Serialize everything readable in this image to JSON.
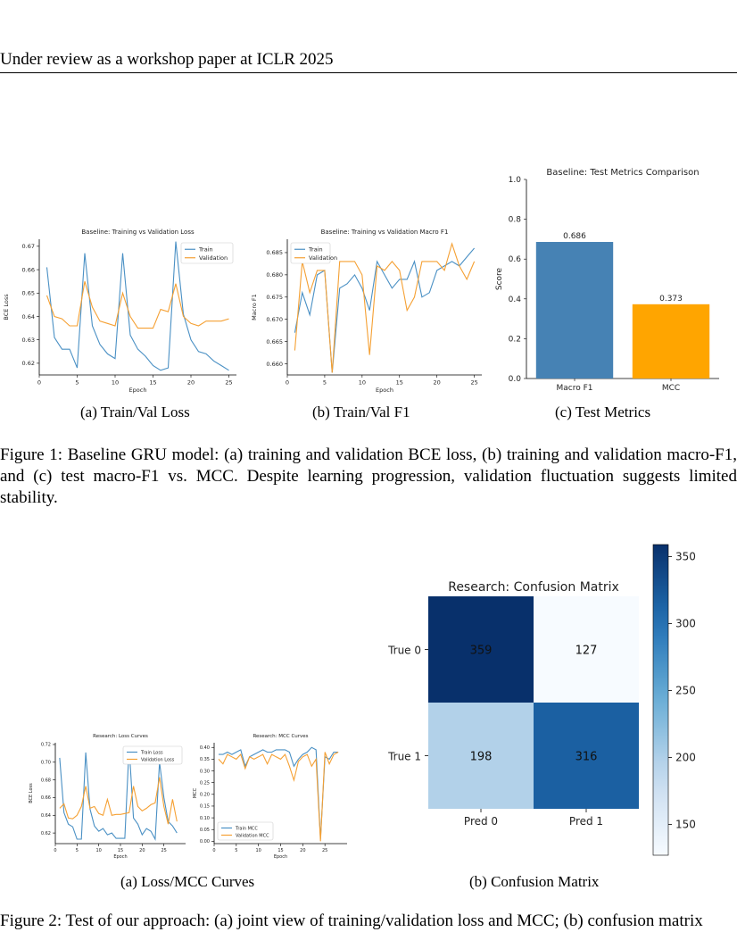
{
  "header": {
    "text": "Under review as a workshop paper at ICLR 2025"
  },
  "figure1": {
    "caption": "Figure 1: Baseline GRU model: (a) training and validation BCE loss, (b) training and validation macro-F1, and (c) test macro-F1 vs. MCC. Despite learning progression, validation fluctuation suggests limited stability.",
    "subcaptions": [
      "(a) Train/Val Loss",
      "(b) Train/Val F1",
      "(c) Test Metrics"
    ]
  },
  "figure2": {
    "subcaptions": [
      "(a) Loss/MCC Curves",
      "(b) Confusion Matrix"
    ],
    "caption_partial": "Figure 2: Test of our approach: (a) joint view of training/validation loss and MCC; (b) confusion matrix"
  },
  "colors": {
    "train": "#4a90c4",
    "validation": "#f5a033",
    "bar1": "#4682b4",
    "bar2": "#ffa500"
  },
  "chart_data": [
    {
      "id": "loss",
      "type": "line",
      "title": "Baseline: Training vs Validation Loss",
      "xlabel": "Epoch",
      "ylabel": "BCE Loss",
      "xlim": [
        0,
        26
      ],
      "ylim": [
        0.615,
        0.673
      ],
      "xticks": [
        0,
        5,
        10,
        15,
        20,
        25
      ],
      "yticks": [
        0.62,
        0.63,
        0.64,
        0.65,
        0.66,
        0.67
      ],
      "ytick_labels": [
        "0.62",
        "0.63",
        "0.64",
        "0.65",
        "0.66",
        "0.67"
      ],
      "legend": "top-right",
      "x": [
        1,
        2,
        3,
        4,
        5,
        6,
        7,
        8,
        9,
        10,
        11,
        12,
        13,
        14,
        15,
        16,
        17,
        18,
        19,
        20,
        21,
        22,
        23,
        24,
        25
      ],
      "series": [
        {
          "name": "Train",
          "color": "#4a90c4",
          "values": [
            0.661,
            0.631,
            0.626,
            0.626,
            0.618,
            0.667,
            0.636,
            0.628,
            0.624,
            0.622,
            0.667,
            0.632,
            0.626,
            0.623,
            0.619,
            0.617,
            0.618,
            0.672,
            0.641,
            0.63,
            0.625,
            0.624,
            0.621,
            0.619,
            0.617
          ]
        },
        {
          "name": "Validation",
          "color": "#f5a033",
          "values": [
            0.649,
            0.64,
            0.639,
            0.636,
            0.636,
            0.655,
            0.644,
            0.638,
            0.637,
            0.636,
            0.65,
            0.64,
            0.635,
            0.635,
            0.635,
            0.643,
            0.642,
            0.654,
            0.64,
            0.637,
            0.636,
            0.638,
            0.638,
            0.638,
            0.639
          ]
        }
      ]
    },
    {
      "id": "f1",
      "type": "line",
      "title": "Baseline: Training vs Validation Macro F1",
      "xlabel": "Epoch",
      "ylabel": "Macro F1",
      "xlim": [
        0,
        26
      ],
      "ylim": [
        0.6575,
        0.688
      ],
      "xticks": [
        0,
        5,
        10,
        15,
        20,
        25
      ],
      "yticks": [
        0.66,
        0.665,
        0.67,
        0.675,
        0.68,
        0.685
      ],
      "ytick_labels": [
        "0.660",
        "0.665",
        "0.670",
        "0.675",
        "0.680",
        "0.685"
      ],
      "legend": "top-left",
      "x": [
        1,
        2,
        3,
        4,
        5,
        6,
        7,
        8,
        9,
        10,
        11,
        12,
        13,
        14,
        15,
        16,
        17,
        18,
        19,
        20,
        21,
        22,
        23,
        24,
        25
      ],
      "series": [
        {
          "name": "Train",
          "color": "#4a90c4",
          "values": [
            0.667,
            0.676,
            0.671,
            0.68,
            0.681,
            0.658,
            0.677,
            0.678,
            0.68,
            0.677,
            0.672,
            0.683,
            0.68,
            0.677,
            0.679,
            0.679,
            0.683,
            0.675,
            0.676,
            0.681,
            0.682,
            0.683,
            0.682,
            0.684,
            0.686
          ]
        },
        {
          "name": "Validation",
          "color": "#f5a033",
          "values": [
            0.663,
            0.683,
            0.676,
            0.681,
            0.681,
            0.658,
            0.683,
            0.683,
            0.683,
            0.68,
            0.662,
            0.682,
            0.681,
            0.683,
            0.681,
            0.672,
            0.675,
            0.683,
            0.683,
            0.683,
            0.681,
            0.687,
            0.682,
            0.679,
            0.683
          ]
        }
      ]
    },
    {
      "id": "bars",
      "type": "bar",
      "title": "Baseline: Test Metrics Comparison",
      "xlabel": "",
      "ylabel": "Score",
      "ylim": [
        0,
        1.0
      ],
      "yticks": [
        0.0,
        0.2,
        0.4,
        0.6,
        0.8,
        1.0
      ],
      "ytick_labels": [
        "0.0",
        "0.2",
        "0.4",
        "0.6",
        "0.8",
        "1.0"
      ],
      "categories": [
        "Macro F1",
        "MCC"
      ],
      "values": [
        0.686,
        0.373
      ],
      "value_labels": [
        "0.686",
        "0.373"
      ],
      "colors": [
        "#4682b4",
        "#ffa500"
      ]
    },
    {
      "id": "rloss",
      "type": "line",
      "title": "Research: Loss Curves",
      "xlabel": "Epoch",
      "ylabel": "BCE Loss",
      "xlim": [
        0,
        30
      ],
      "ylim": [
        0.608,
        0.722
      ],
      "xticks": [
        0,
        5,
        10,
        15,
        20,
        25
      ],
      "yticks": [
        0.62,
        0.64,
        0.66,
        0.68,
        0.7,
        0.72
      ],
      "ytick_labels": [
        "0.62",
        "0.64",
        "0.66",
        "0.68",
        "0.70",
        "0.72"
      ],
      "legend": "top-right",
      "x": [
        1,
        2,
        3,
        4,
        5,
        6,
        7,
        8,
        9,
        10,
        11,
        12,
        13,
        14,
        15,
        16,
        17,
        18,
        19,
        20,
        21,
        22,
        23,
        24,
        25,
        26,
        27,
        28
      ],
      "series": [
        {
          "name": "Train Loss",
          "color": "#4a90c4",
          "values": [
            0.705,
            0.643,
            0.63,
            0.627,
            0.613,
            0.613,
            0.711,
            0.647,
            0.628,
            0.622,
            0.625,
            0.618,
            0.62,
            0.614,
            0.614,
            0.614,
            0.718,
            0.637,
            0.63,
            0.618,
            0.625,
            0.622,
            0.613,
            0.7,
            0.66,
            0.633,
            0.628,
            0.62
          ]
        },
        {
          "name": "Validation Loss",
          "color": "#f5a033",
          "values": [
            0.648,
            0.653,
            0.637,
            0.636,
            0.64,
            0.65,
            0.673,
            0.648,
            0.65,
            0.642,
            0.64,
            0.658,
            0.64,
            0.641,
            0.641,
            0.642,
            0.643,
            0.673,
            0.65,
            0.645,
            0.648,
            0.652,
            0.654,
            0.683,
            0.65,
            0.63,
            0.658,
            0.633
          ]
        }
      ]
    },
    {
      "id": "rmcc",
      "type": "line",
      "title": "Research: MCC Curves",
      "xlabel": "Epoch",
      "ylabel": "MCC",
      "xlim": [
        0,
        30
      ],
      "ylim": [
        -0.01,
        0.42
      ],
      "xticks": [
        0,
        5,
        10,
        15,
        20,
        25
      ],
      "yticks": [
        0.0,
        0.05,
        0.1,
        0.15,
        0.2,
        0.25,
        0.3,
        0.35,
        0.4
      ],
      "ytick_labels": [
        "0.00",
        "0.05",
        "0.10",
        "0.15",
        "0.20",
        "0.25",
        "0.30",
        "0.35",
        "0.40"
      ],
      "legend": "bottom-left",
      "x": [
        1,
        2,
        3,
        4,
        5,
        6,
        7,
        8,
        9,
        10,
        11,
        12,
        13,
        14,
        15,
        16,
        17,
        18,
        19,
        20,
        21,
        22,
        23,
        24,
        25,
        26,
        27,
        28
      ],
      "series": [
        {
          "name": "Train MCC",
          "color": "#4a90c4",
          "values": [
            0.37,
            0.37,
            0.38,
            0.37,
            0.38,
            0.39,
            0.32,
            0.36,
            0.37,
            0.38,
            0.39,
            0.38,
            0.38,
            0.39,
            0.39,
            0.39,
            0.38,
            0.32,
            0.35,
            0.37,
            0.38,
            0.4,
            0.39,
            0.01,
            0.36,
            0.35,
            0.38,
            0.38
          ]
        },
        {
          "name": "Validation MCC",
          "color": "#f5a033",
          "values": [
            0.35,
            0.33,
            0.37,
            0.36,
            0.35,
            0.37,
            0.31,
            0.36,
            0.35,
            0.36,
            0.37,
            0.33,
            0.37,
            0.36,
            0.35,
            0.37,
            0.32,
            0.26,
            0.34,
            0.36,
            0.37,
            0.32,
            0.35,
            0.0,
            0.38,
            0.33,
            0.37,
            0.38
          ]
        }
      ]
    },
    {
      "id": "cm",
      "type": "heatmap",
      "title": "Research: Confusion Matrix",
      "row_labels": [
        "True 0",
        "True 1"
      ],
      "col_labels": [
        "Pred 0",
        "Pred 1"
      ],
      "values": [
        [
          359,
          127
        ],
        [
          198,
          316
        ]
      ],
      "colorbar_range": [
        127,
        359
      ],
      "colorbar_ticks": [
        150,
        200,
        250,
        300,
        350
      ]
    }
  ]
}
